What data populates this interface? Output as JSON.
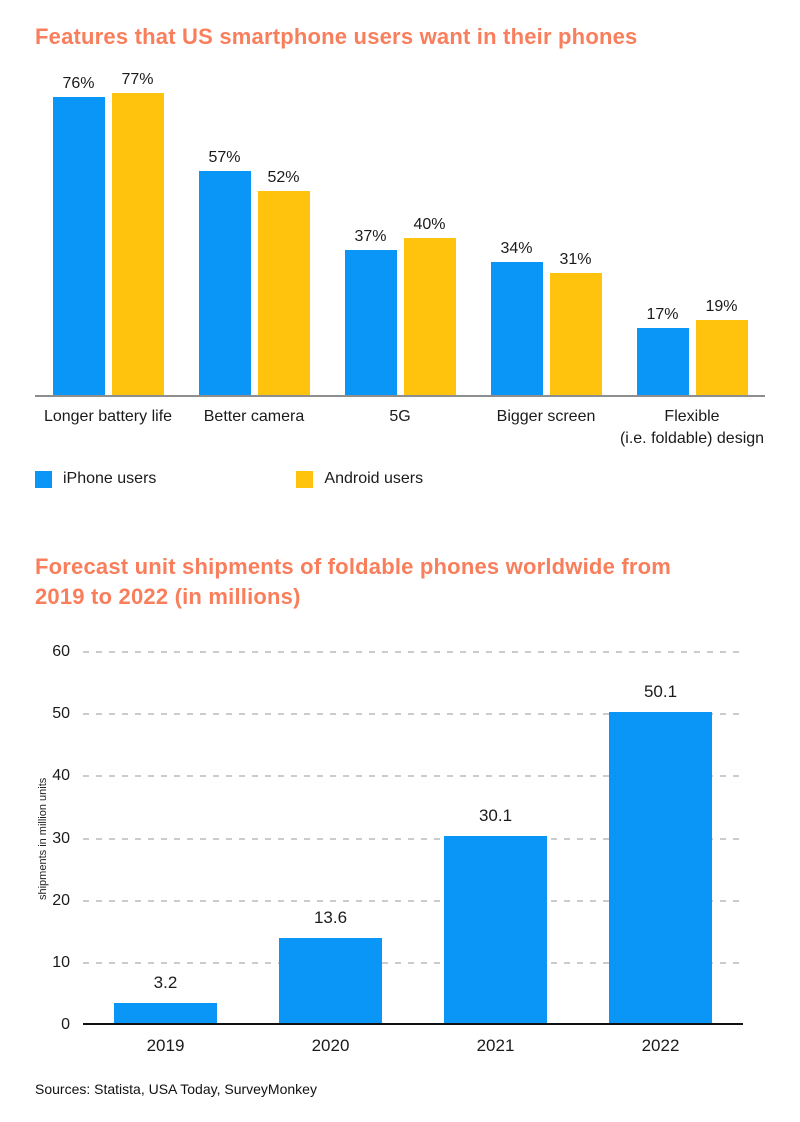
{
  "page": {
    "footer": "Sources: Statista, USA Today, SurveyMonkey"
  },
  "colors": {
    "accent_title": "#F87E5C",
    "iphone_blue": "#0A96F7",
    "android_yellow": "#FFC30D",
    "axis_top_chart": "#8E8E8E",
    "axis_bottom_chart": "#111111",
    "gridline": "#CCCCCC",
    "text": "#1B1B1B"
  },
  "chart_data": [
    {
      "type": "bar",
      "title": "Features that US smartphone users want in their phones",
      "categories": [
        "Longer battery life",
        "Better camera",
        "5G",
        "Bigger screen",
        "Flexible\n(i.e. foldable) design"
      ],
      "series": [
        {
          "name": "iPhone users",
          "color_key": "iphone_blue",
          "values": [
            76,
            57,
            37,
            34,
            17
          ]
        },
        {
          "name": "Android users",
          "color_key": "android_yellow",
          "values": [
            77,
            52,
            40,
            31,
            19
          ]
        }
      ],
      "value_suffix": "%",
      "xlabel": "",
      "ylabel": "",
      "ylim": [
        0,
        80
      ],
      "grid": false,
      "legend_position": "bottom"
    },
    {
      "type": "bar",
      "title": "Forecast unit shipments of foldable phones worldwide from\n2019 to 2022 (in millions)",
      "categories": [
        "2019",
        "2020",
        "2021",
        "2022"
      ],
      "values": [
        3.2,
        13.6,
        30.1,
        50.1
      ],
      "xlabel": "",
      "ylabel": "shipments in million units",
      "yticks": [
        0,
        10,
        20,
        30,
        40,
        50,
        60
      ],
      "ylim": [
        0,
        60
      ],
      "grid": true,
      "legend_position": "none"
    }
  ]
}
